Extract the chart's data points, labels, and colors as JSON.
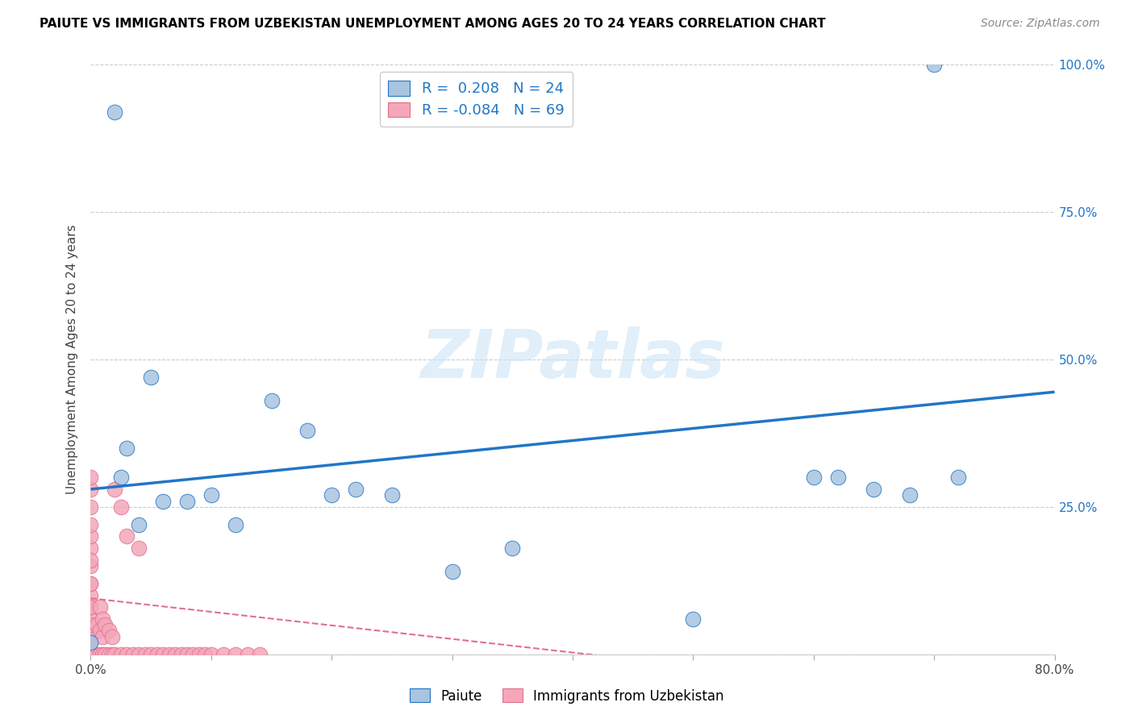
{
  "title": "PAIUTE VS IMMIGRANTS FROM UZBEKISTAN UNEMPLOYMENT AMONG AGES 20 TO 24 YEARS CORRELATION CHART",
  "source": "Source: ZipAtlas.com",
  "ylabel": "Unemployment Among Ages 20 to 24 years",
  "xlim": [
    0.0,
    0.8
  ],
  "ylim": [
    0.0,
    1.0
  ],
  "xtick_positions": [
    0.0,
    0.1,
    0.2,
    0.3,
    0.4,
    0.5,
    0.6,
    0.7,
    0.8
  ],
  "xticklabels": [
    "0.0%",
    "",
    "",
    "",
    "",
    "",
    "",
    "",
    "80.0%"
  ],
  "ytick_positions": [
    0.0,
    0.25,
    0.5,
    0.75,
    1.0
  ],
  "right_yticklabels": [
    "",
    "25.0%",
    "50.0%",
    "75.0%",
    "100.0%"
  ],
  "paiute_color": "#a8c4e0",
  "uzbek_color": "#f4a7b9",
  "paiute_R": 0.208,
  "paiute_N": 24,
  "uzbek_R": -0.084,
  "uzbek_N": 69,
  "line_blue": "#2176c7",
  "line_pink": "#e07090",
  "watermark": "ZIPatlas",
  "legend_label_paiute": "Paiute",
  "legend_label_uzbek": "Immigrants from Uzbekistan",
  "blue_line_x": [
    0.0,
    0.8
  ],
  "blue_line_y": [
    0.28,
    0.445
  ],
  "pink_line_x": [
    0.0,
    0.5
  ],
  "pink_line_y": [
    0.095,
    -0.02
  ],
  "paiute_x": [
    0.0,
    0.02,
    0.025,
    0.03,
    0.04,
    0.05,
    0.06,
    0.08,
    0.1,
    0.12,
    0.15,
    0.18,
    0.2,
    0.22,
    0.25,
    0.3,
    0.35,
    0.5,
    0.6,
    0.62,
    0.65,
    0.7,
    0.72,
    0.68
  ],
  "paiute_y": [
    0.02,
    0.92,
    0.3,
    0.35,
    0.22,
    0.47,
    0.26,
    0.26,
    0.27,
    0.22,
    0.43,
    0.38,
    0.27,
    0.28,
    0.27,
    0.14,
    0.18,
    0.06,
    0.3,
    0.3,
    0.28,
    1.0,
    0.3,
    0.27
  ],
  "uzbek_x_cluster": [
    0.0,
    0.0,
    0.0,
    0.0,
    0.0,
    0.0,
    0.0,
    0.0,
    0.0,
    0.0,
    0.0,
    0.0,
    0.0,
    0.0,
    0.0,
    0.0,
    0.0,
    0.0,
    0.0,
    0.0,
    0.0,
    0.0,
    0.0,
    0.0,
    0.0,
    0.0,
    0.0,
    0.0,
    0.0,
    0.0,
    0.005,
    0.005,
    0.008,
    0.008,
    0.008,
    0.01,
    0.01,
    0.01,
    0.012,
    0.012,
    0.015,
    0.015,
    0.018,
    0.018,
    0.02,
    0.02,
    0.025,
    0.025,
    0.03,
    0.03,
    0.035,
    0.04,
    0.04,
    0.045,
    0.05,
    0.055,
    0.06,
    0.065,
    0.07,
    0.075,
    0.08,
    0.085,
    0.09,
    0.095,
    0.1,
    0.11,
    0.12,
    0.13,
    0.14
  ],
  "uzbek_y_cluster": [
    0.0,
    0.0,
    0.0,
    0.0,
    0.0,
    0.0,
    0.0,
    0.0,
    0.0,
    0.0,
    0.0,
    0.0,
    0.02,
    0.03,
    0.04,
    0.06,
    0.08,
    0.1,
    0.12,
    0.15,
    0.18,
    0.2,
    0.22,
    0.25,
    0.28,
    0.3,
    0.05,
    0.08,
    0.12,
    0.16,
    0.0,
    0.05,
    0.0,
    0.04,
    0.08,
    0.0,
    0.03,
    0.06,
    0.0,
    0.05,
    0.0,
    0.04,
    0.0,
    0.03,
    0.0,
    0.28,
    0.0,
    0.25,
    0.0,
    0.2,
    0.0,
    0.0,
    0.18,
    0.0,
    0.0,
    0.0,
    0.0,
    0.0,
    0.0,
    0.0,
    0.0,
    0.0,
    0.0,
    0.0,
    0.0,
    0.0,
    0.0,
    0.0,
    0.0
  ]
}
